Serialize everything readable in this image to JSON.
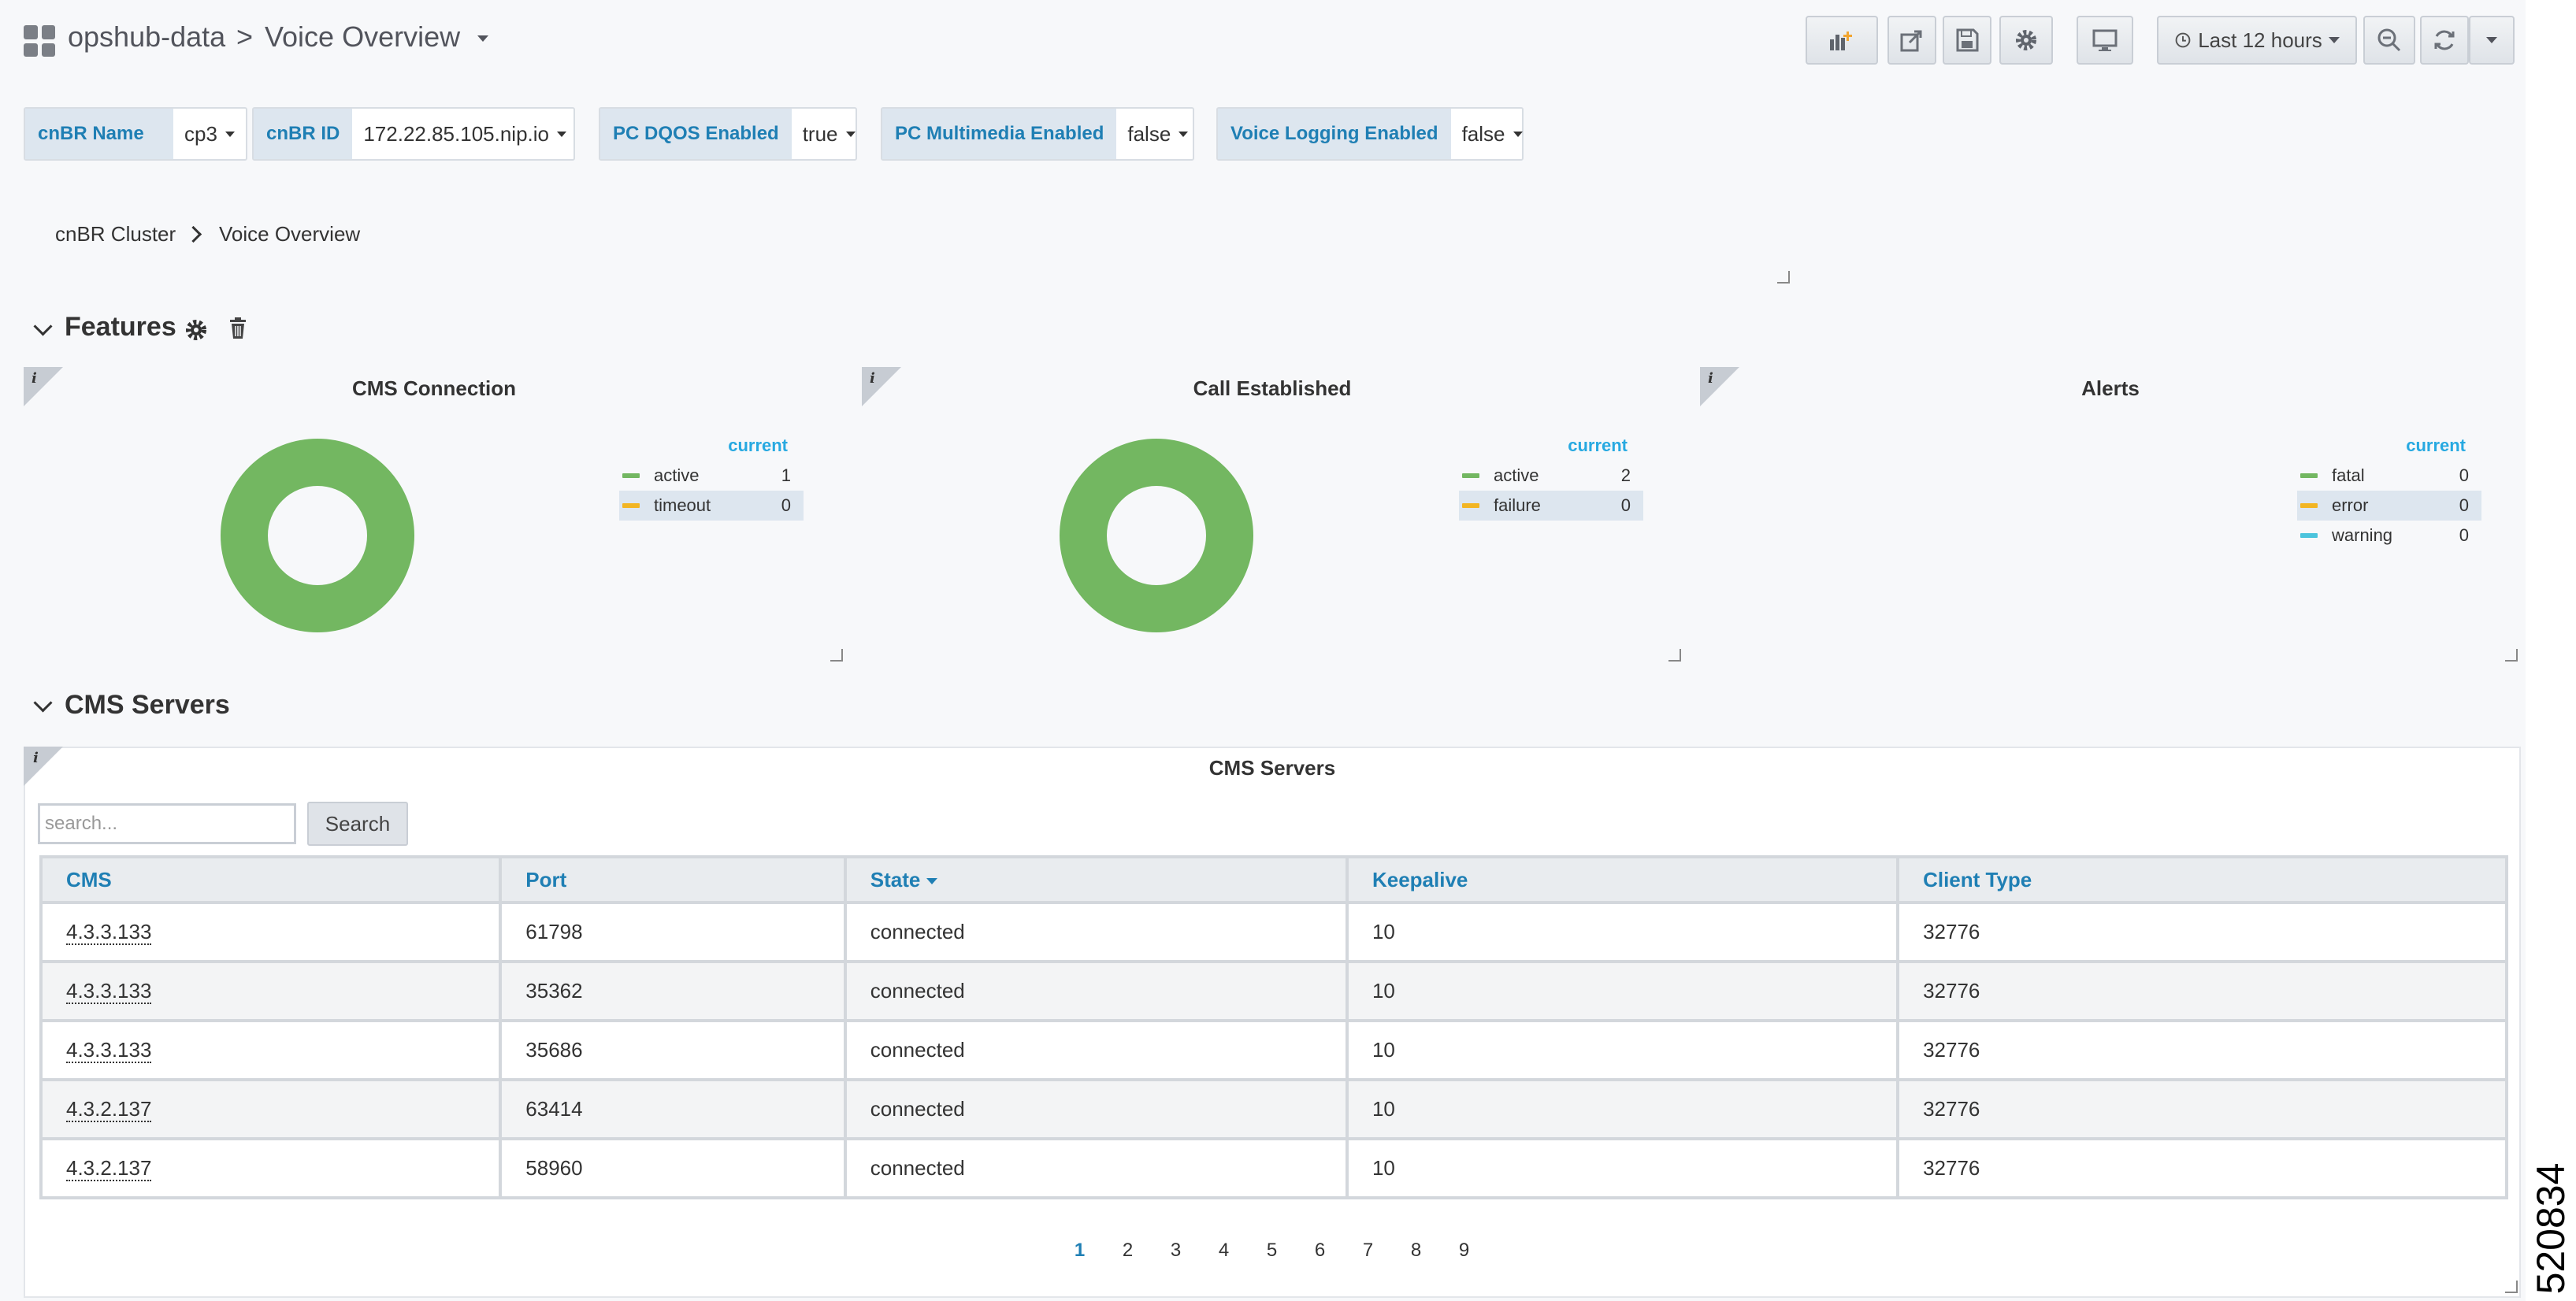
{
  "header": {
    "dashboard_folder": "opshub-data",
    "separator": ">",
    "dashboard_title": "Voice Overview",
    "time_range_label": "Last 12 hours"
  },
  "variables": [
    {
      "label": "cnBR Name",
      "value": "cp3"
    },
    {
      "label": "cnBR ID",
      "value": "172.22.85.105.nip.io"
    },
    {
      "label": "PC DQOS Enabled",
      "value": "true"
    },
    {
      "label": "PC Multimedia Enabled",
      "value": "false"
    },
    {
      "label": "Voice Logging Enabled",
      "value": "false"
    }
  ],
  "breadcrumb": {
    "parent": "cnBR Cluster",
    "current": "Voice Overview"
  },
  "features_row": {
    "title": "Features"
  },
  "panels": {
    "cms_connection": {
      "title": "CMS Connection",
      "legend_header": "current",
      "items": [
        {
          "name": "active",
          "value": "1",
          "color": "#73b761"
        },
        {
          "name": "timeout",
          "value": "0",
          "color": "#f2b523"
        }
      ]
    },
    "call_established": {
      "title": "Call Established",
      "legend_header": "current",
      "items": [
        {
          "name": "active",
          "value": "2",
          "color": "#73b761"
        },
        {
          "name": "failure",
          "value": "0",
          "color": "#f2b523"
        }
      ]
    },
    "alerts": {
      "title": "Alerts",
      "legend_header": "current",
      "items": [
        {
          "name": "fatal",
          "value": "0",
          "color": "#73b761"
        },
        {
          "name": "error",
          "value": "0",
          "color": "#f2b523"
        },
        {
          "name": "warning",
          "value": "0",
          "color": "#4bc4dd"
        }
      ]
    }
  },
  "cms_row": {
    "title": "CMS Servers"
  },
  "cms_table": {
    "panel_title": "CMS Servers",
    "search_placeholder": "search...",
    "search_button": "Search",
    "columns": [
      "CMS",
      "Port",
      "State",
      "Keepalive",
      "Client Type"
    ],
    "rows": [
      [
        "4.3.3.133",
        "61798",
        "connected",
        "10",
        "32776"
      ],
      [
        "4.3.3.133",
        "35362",
        "connected",
        "10",
        "32776"
      ],
      [
        "4.3.3.133",
        "35686",
        "connected",
        "10",
        "32776"
      ],
      [
        "4.3.2.137",
        "63414",
        "connected",
        "10",
        "32776"
      ],
      [
        "4.3.2.137",
        "58960",
        "connected",
        "10",
        "32776"
      ]
    ],
    "pages": [
      "1",
      "2",
      "3",
      "4",
      "5",
      "6",
      "7",
      "8",
      "9"
    ],
    "current_page": "1"
  },
  "figure_number": "520834"
}
